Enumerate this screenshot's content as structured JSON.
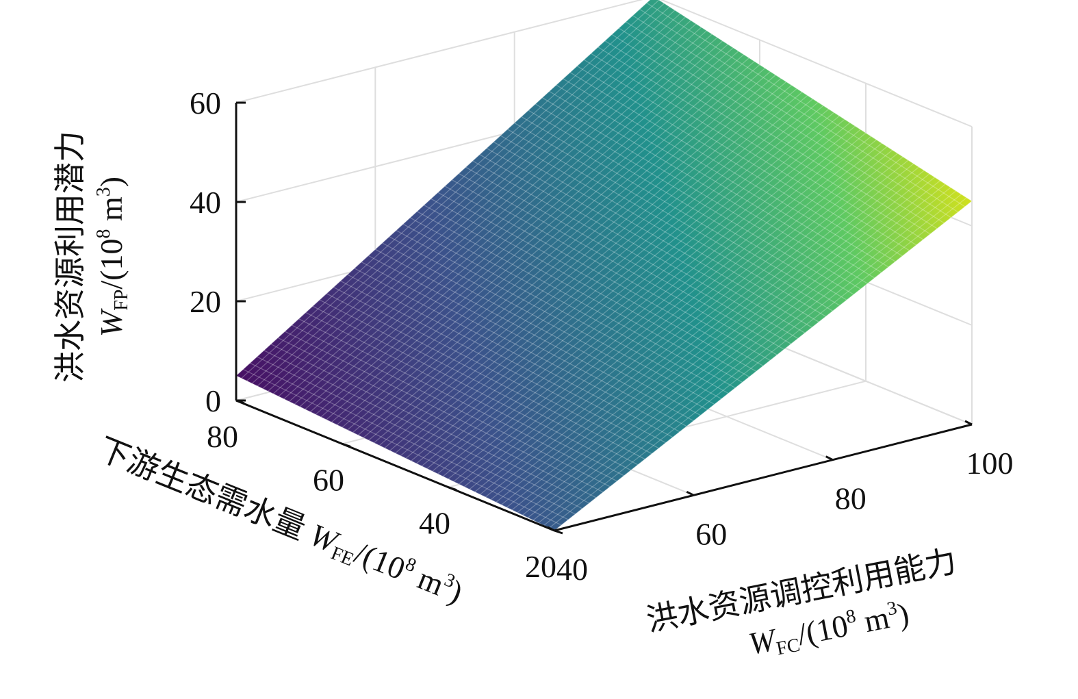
{
  "chart_data": {
    "type": "surface",
    "x_axis": {
      "label": "洪水资源调控利用能力",
      "symbol": "W",
      "subscript": "FC",
      "unit_prefix": "/(10",
      "unit_exp": "8",
      "unit_mid": " m",
      "unit_exp2": "3",
      "unit_suffix": ")",
      "ticks": [
        40,
        60,
        80,
        100
      ],
      "range": [
        40,
        100
      ]
    },
    "y_axis": {
      "label": "下游生态需水量",
      "symbol": "W",
      "subscript": "FE",
      "unit_prefix": "/(10",
      "unit_exp": "8",
      "unit_mid": " m",
      "unit_exp2": "3",
      "unit_suffix": ")",
      "ticks": [
        20,
        40,
        60,
        80
      ],
      "range": [
        20,
        80
      ]
    },
    "z_axis": {
      "label": "洪水资源利用潜力",
      "symbol": "W",
      "subscript": "FP",
      "unit_prefix": "/(10",
      "unit_exp": "8",
      "unit_mid": " m",
      "unit_exp2": "3",
      "unit_suffix": ")",
      "ticks": [
        0,
        20,
        40,
        60
      ],
      "range": [
        0,
        60
      ]
    },
    "surface_corners": [
      {
        "x": 40,
        "y": 20,
        "z": 0
      },
      {
        "x": 40,
        "y": 80,
        "z": 5
      },
      {
        "x": 100,
        "y": 20,
        "z": 45
      },
      {
        "x": 100,
        "y": 80,
        "z": 60
      }
    ],
    "colormap": [
      "#471164",
      "#3b528b",
      "#21918c",
      "#5ec962",
      "#fde725"
    ],
    "grid": true
  }
}
